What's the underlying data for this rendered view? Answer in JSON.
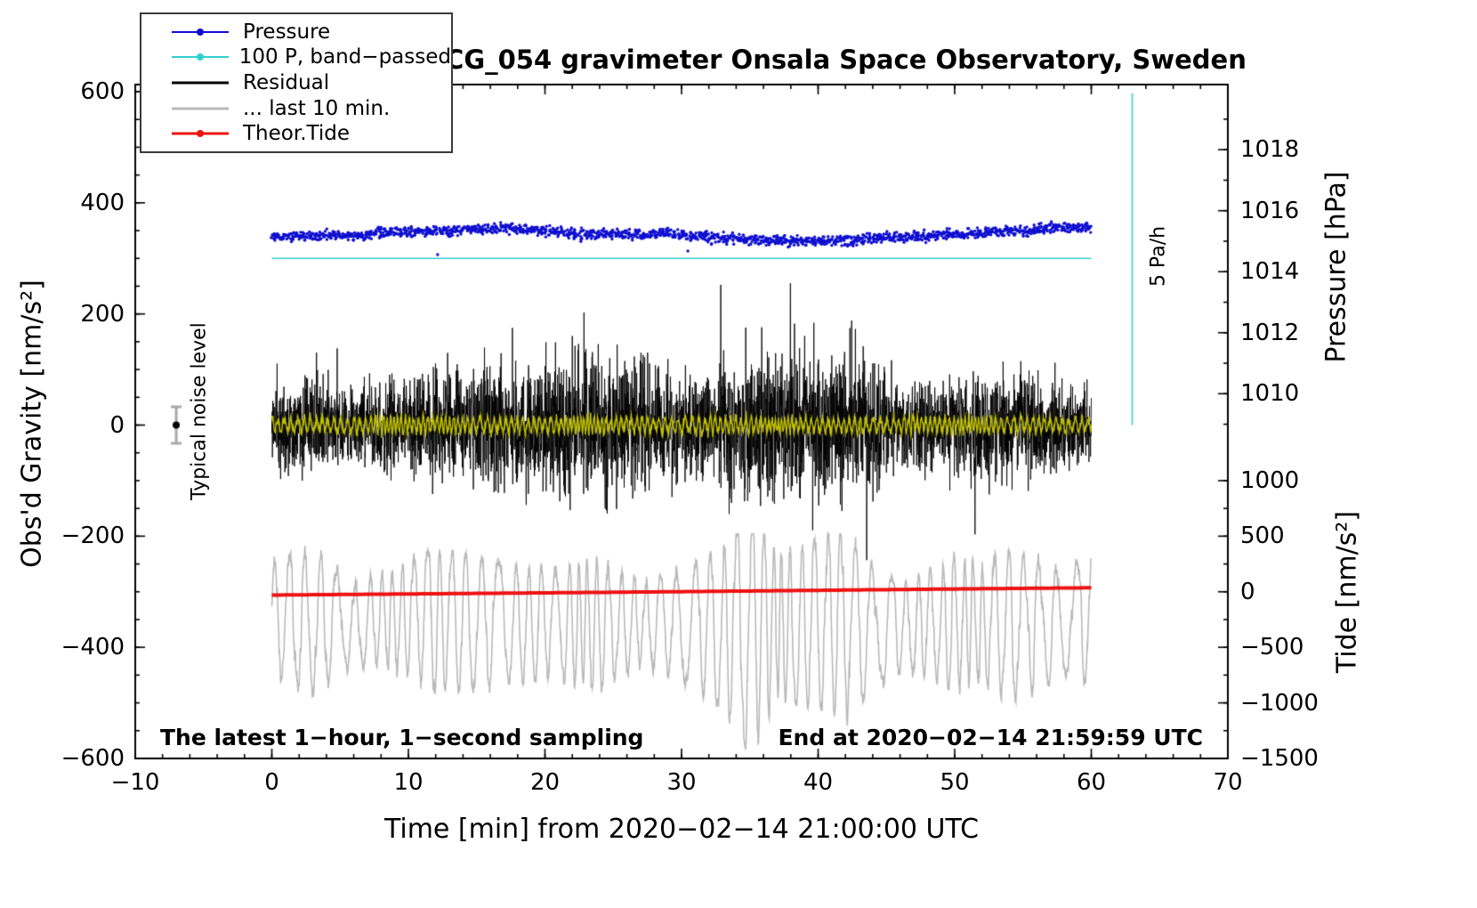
{
  "legend": {
    "entries": [
      {
        "label": "Pressure",
        "color": "#0f0fd0",
        "dot": true,
        "line_width": 2
      },
      {
        "label": "100 P, band−passed",
        "color": "#30d0d0",
        "dot": true,
        "line_width": 2
      },
      {
        "label": "Residual",
        "color": "#000000",
        "dot": false,
        "line_width": 3
      },
      {
        "label": "... last 10 min.",
        "color": "#b9b9b9",
        "dot": false,
        "line_width": 3
      },
      {
        "label": "Theor.Tide",
        "color": "#ee1111",
        "dot": true,
        "line_width": 3
      }
    ]
  },
  "chart_data": {
    "type": "line",
    "title": "SCG_054 gravimeter Onsala Space Observatory, Sweden",
    "annotations": {
      "sampling_note": "The latest 1−hour, 1−second sampling",
      "end_note": "End at 2020−02−14 21:59:59 UTC",
      "noise_level": "Typical noise level",
      "pressure_slope": "5 Pa/h"
    },
    "x_axis": {
      "label": "Time [min] from 2020−02−14 21:00:00 UTC",
      "range": [
        -10,
        70
      ],
      "tick_values": [
        -10,
        0,
        10,
        20,
        30,
        40,
        50,
        60,
        70
      ],
      "tick_labels": [
        "−10",
        "0",
        "10",
        "20",
        "30",
        "40",
        "50",
        "60",
        "70"
      ],
      "minor_tick_step": 2
    },
    "y_left": {
      "label": "Obs'd Gravity [nm/s²]",
      "range": [
        -600,
        600
      ],
      "tick_values": [
        -600,
        -400,
        -200,
        0,
        200,
        400,
        600
      ],
      "tick_labels": [
        "−600",
        "−400",
        "−200",
        "0",
        "200",
        "400",
        "600"
      ],
      "minor_tick_step": 50
    },
    "y_right_pressure": {
      "label": "Pressure [hPa]",
      "tick_values": [
        1010,
        1012,
        1014,
        1016,
        1018
      ],
      "tick_labels": [
        "1010",
        "1012",
        "1014",
        "1016",
        "1018"
      ],
      "anchor": {
        "hPa": 1014,
        "gravity": 276
      },
      "gravity_per_hPa": 54.9,
      "minor_tick_step": 1
    },
    "y_right_tide": {
      "label": "Tide [nm/s²]",
      "tick_values": [
        -1500,
        -1000,
        -500,
        0,
        500,
        1000
      ],
      "tick_labels": [
        "−1500",
        "−1000",
        "−500",
        "0",
        "500",
        "1000"
      ],
      "anchor": {
        "tide": 0,
        "gravity": -300
      },
      "gravity_per_unit": 0.2,
      "minor_tick_step": 250
    },
    "series": [
      {
        "name": "residual_last_10_min",
        "legend": "... last 10 min.",
        "type": "oscillation",
        "axis": "tide",
        "color": "#b9b9b9",
        "line_width": 1.6,
        "x_range": [
          0,
          60
        ],
        "n_points": 2600,
        "base_period_min": 1.0,
        "center_keypoints": [
          [
            0,
            -250
          ],
          [
            5,
            -280
          ],
          [
            10,
            -240
          ],
          [
            15,
            -280
          ],
          [
            20,
            -300
          ],
          [
            25,
            -280
          ],
          [
            30,
            -300
          ],
          [
            35,
            -340
          ],
          [
            40,
            -290
          ],
          [
            45,
            -320
          ],
          [
            50,
            -280
          ],
          [
            55,
            -300
          ],
          [
            60,
            -260
          ]
        ],
        "amplitude_keypoints": [
          [
            0,
            520
          ],
          [
            3,
            650
          ],
          [
            6,
            380
          ],
          [
            9,
            450
          ],
          [
            12,
            640
          ],
          [
            15,
            600
          ],
          [
            18,
            520
          ],
          [
            21,
            500
          ],
          [
            24,
            600
          ],
          [
            27,
            380
          ],
          [
            30,
            500
          ],
          [
            33,
            720
          ],
          [
            35,
            1130
          ],
          [
            37,
            650
          ],
          [
            40,
            780
          ],
          [
            42,
            880
          ],
          [
            44,
            550
          ],
          [
            46,
            400
          ],
          [
            48,
            470
          ],
          [
            50,
            600
          ],
          [
            52,
            520
          ],
          [
            54,
            680
          ],
          [
            56,
            600
          ],
          [
            58,
            470
          ],
          [
            60,
            600
          ]
        ],
        "noise": 25,
        "clamp": [
          -1500,
          520
        ],
        "seed": 7
      },
      {
        "name": "theoretical_tide",
        "legend": "Theor.Tide",
        "type": "smooth_line",
        "axis": "tide",
        "color": "#ee1111",
        "line_width": 4,
        "keypoints": [
          [
            0,
            -30
          ],
          [
            10,
            -20
          ],
          [
            20,
            -10
          ],
          [
            30,
            1
          ],
          [
            40,
            13
          ],
          [
            50,
            25
          ],
          [
            60,
            36
          ]
        ]
      },
      {
        "name": "residual",
        "legend": "Residual",
        "type": "noise_line",
        "axis": "gravity",
        "color": "#000000",
        "line_width": 0.9,
        "x_range": [
          0,
          60
        ],
        "n_points": 4200,
        "envelope_keypoints": [
          [
            0,
            75
          ],
          [
            2,
            95
          ],
          [
            4,
            80
          ],
          [
            6,
            70
          ],
          [
            8,
            100
          ],
          [
            10,
            85
          ],
          [
            12,
            100
          ],
          [
            14,
            110
          ],
          [
            16,
            125
          ],
          [
            18,
            105
          ],
          [
            20,
            135
          ],
          [
            22,
            150
          ],
          [
            23,
            165
          ],
          [
            24,
            150
          ],
          [
            26,
            135
          ],
          [
            28,
            115
          ],
          [
            30,
            95
          ],
          [
            32,
            100
          ],
          [
            34,
            130
          ],
          [
            36,
            150
          ],
          [
            38,
            135
          ],
          [
            40,
            145
          ],
          [
            42,
            150
          ],
          [
            44,
            110
          ],
          [
            46,
            90
          ],
          [
            48,
            85
          ],
          [
            50,
            95
          ],
          [
            52,
            105
          ],
          [
            54,
            115
          ],
          [
            56,
            95
          ],
          [
            58,
            85
          ],
          [
            60,
            78
          ]
        ],
        "scale": 0.45,
        "spike_probability": 0.012,
        "spike_factor": 2.4,
        "clamp": [
          -265,
          308
        ],
        "seed": 11
      },
      {
        "name": "pressure_bandpassed_overlay",
        "type": "oscillation",
        "axis": "gravity",
        "color": "#c0c000",
        "line_width": 1.4,
        "x_range": [
          0,
          60
        ],
        "n_points": 2200,
        "base_period_min": 0.38,
        "center_keypoints": [
          [
            0,
            0
          ],
          [
            60,
            0
          ]
        ],
        "amplitude_keypoints": [
          [
            0,
            10
          ],
          [
            10,
            14
          ],
          [
            20,
            12
          ],
          [
            30,
            13
          ],
          [
            40,
            12
          ],
          [
            50,
            13
          ],
          [
            60,
            11
          ]
        ],
        "noise": 4,
        "clamp": [
          -45,
          45
        ],
        "seed": 23
      },
      {
        "name": "bandpass_reference_line",
        "legend": "100 P, band−passed",
        "type": "line_flat",
        "axis": "gravity",
        "color": "#30d0d0",
        "line_width": 1.6,
        "x_range": [
          0,
          60
        ],
        "value": 300
      },
      {
        "name": "pressure_slope_reference",
        "type": "line_vertical",
        "axis": "gravity",
        "color": "#30d0d0",
        "line_width": 1.6,
        "x": 63,
        "value_range": [
          0,
          597
        ]
      },
      {
        "name": "pressure",
        "legend": "Pressure",
        "type": "dots",
        "axis": "pressure",
        "color": "#0f0fd0",
        "dot_radius": 1.7,
        "x_range": [
          0,
          60
        ],
        "n_points": 1700,
        "noise_hPa": 0.08,
        "outlier_probability": 0.005,
        "outlier_drop_hPa": 0.55,
        "seed": 5,
        "keypoints_hPa": [
          [
            0,
            1015.15
          ],
          [
            3,
            1015.2
          ],
          [
            6,
            1015.18
          ],
          [
            9,
            1015.3
          ],
          [
            12,
            1015.32
          ],
          [
            15,
            1015.4
          ],
          [
            17,
            1015.45
          ],
          [
            19,
            1015.35
          ],
          [
            21,
            1015.3
          ],
          [
            23,
            1015.2
          ],
          [
            25,
            1015.25
          ],
          [
            27,
            1015.2
          ],
          [
            29,
            1015.28
          ],
          [
            31,
            1015.15
          ],
          [
            33,
            1015.1
          ],
          [
            35,
            1015.05
          ],
          [
            37,
            1015.0
          ],
          [
            39,
            1015.0
          ],
          [
            41,
            1015.02
          ],
          [
            43,
            1015.05
          ],
          [
            45,
            1015.12
          ],
          [
            47,
            1015.15
          ],
          [
            49,
            1015.2
          ],
          [
            51,
            1015.25
          ],
          [
            53,
            1015.3
          ],
          [
            55,
            1015.35
          ],
          [
            57,
            1015.42
          ],
          [
            59,
            1015.45
          ],
          [
            60,
            1015.45
          ]
        ]
      },
      {
        "name": "typical_noise_level",
        "type": "point_with_error",
        "axis": "gravity",
        "x": -7,
        "value": 0,
        "error": 33,
        "dot_color": "#000000",
        "bar_color": "#a8a8a8"
      }
    ]
  }
}
